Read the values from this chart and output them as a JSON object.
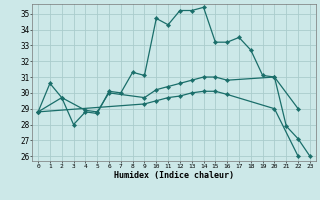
{
  "xlabel": "Humidex (Indice chaleur)",
  "bg_color": "#cce8e8",
  "grid_color": "#aacccc",
  "line_color": "#1a6e6a",
  "xlim": [
    -0.5,
    23.5
  ],
  "ylim": [
    25.7,
    35.6
  ],
  "yticks": [
    26,
    27,
    28,
    29,
    30,
    31,
    32,
    33,
    34,
    35
  ],
  "xticks": [
    0,
    1,
    2,
    3,
    4,
    5,
    6,
    7,
    8,
    9,
    10,
    11,
    12,
    13,
    14,
    15,
    16,
    17,
    18,
    19,
    20,
    21,
    22,
    23
  ],
  "series1": [
    28.8,
    30.6,
    29.7,
    28.0,
    28.8,
    28.7,
    30.1,
    30.0,
    31.3,
    31.1,
    34.7,
    34.3,
    35.2,
    35.2,
    35.4,
    33.2,
    33.2,
    33.5,
    32.7,
    31.1,
    31.0,
    27.9,
    27.1,
    26.0
  ],
  "series2_x": [
    0,
    2,
    4,
    5,
    6,
    9,
    10,
    11,
    12,
    13,
    14,
    15,
    16,
    20,
    22
  ],
  "series2_y": [
    28.8,
    29.7,
    28.9,
    28.8,
    30.0,
    29.7,
    30.2,
    30.4,
    30.6,
    30.8,
    31.0,
    31.0,
    30.8,
    31.0,
    29.0
  ],
  "series3_x": [
    0,
    9,
    10,
    11,
    12,
    13,
    14,
    15,
    16,
    20,
    22
  ],
  "series3_y": [
    28.8,
    29.3,
    29.5,
    29.7,
    29.8,
    30.0,
    30.1,
    30.1,
    29.9,
    29.0,
    26.0
  ]
}
